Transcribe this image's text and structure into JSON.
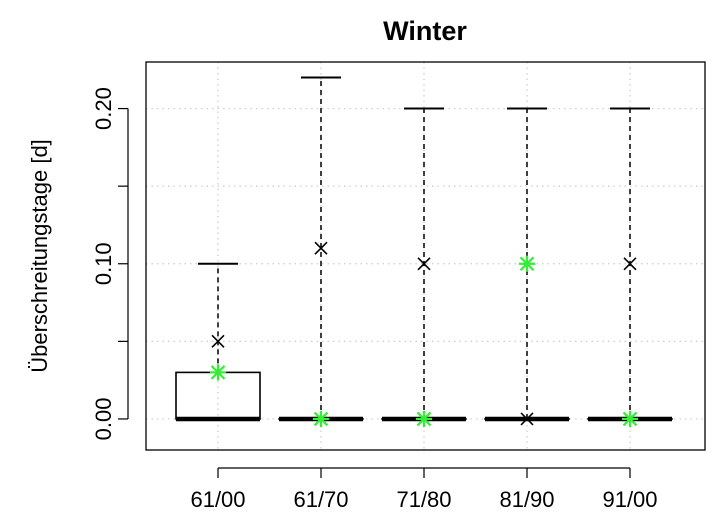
{
  "chart_data": {
    "type": "box",
    "title": "Winter",
    "xlabel": "",
    "ylabel": "Überschreitungstage [d]",
    "categories": [
      "61/00",
      "61/70",
      "71/80",
      "81/90",
      "91/00"
    ],
    "ylim": [
      -0.02,
      0.23
    ],
    "yticks": [
      0.0,
      0.05,
      0.1,
      0.15,
      0.2
    ],
    "ytick_labels": [
      "0.00",
      "",
      "0.10",
      "",
      "0.20"
    ],
    "grid": true,
    "boxes": [
      {
        "min": 0,
        "q1": 0,
        "median": 0,
        "q3": 0.03,
        "max": 0.1,
        "mean": 0.05,
        "green": 0.03
      },
      {
        "min": 0,
        "q1": 0,
        "median": 0,
        "q3": 0,
        "max": 0.22,
        "mean": 0.11,
        "green": 0.0
      },
      {
        "min": 0,
        "q1": 0,
        "median": 0,
        "q3": 0,
        "max": 0.2,
        "mean": 0.1,
        "green": 0.0
      },
      {
        "min": 0,
        "q1": 0,
        "median": 0,
        "q3": 0,
        "max": 0.2,
        "mean": 0.0,
        "green": 0.1
      },
      {
        "min": 0,
        "q1": 0,
        "median": 0,
        "q3": 0,
        "max": 0.2,
        "mean": 0.1,
        "green": 0.0
      }
    ],
    "colors": {
      "box": "#000000",
      "mean_marker": "#000000",
      "green_marker": "#33ee33",
      "grid": "#cccccc"
    }
  }
}
